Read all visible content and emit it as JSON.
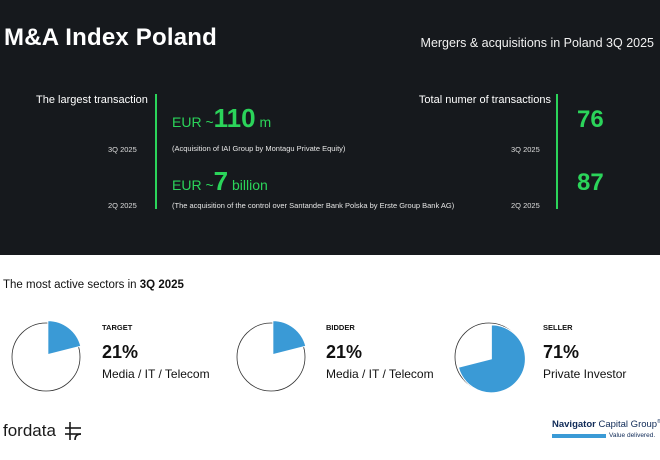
{
  "header": {
    "title": "M&A Index Poland",
    "subtitle": "Mergers & acquisitions in Poland 3Q 2025"
  },
  "largest": {
    "label": "The largest transaction",
    "q1": {
      "period": "3Q 2025",
      "prefix": "EUR ~",
      "value": "110",
      "unit": " m",
      "description": "(Acquisition of IAI Group by Montagu Private Equity)"
    },
    "q2": {
      "period": "2Q 2025",
      "prefix": "EUR ~",
      "value": "7",
      "unit": " billion",
      "description": "(The acquisition of the control over Santander Bank Polska by Erste Group Bank AG)"
    }
  },
  "total": {
    "label": "Total numer of transactions",
    "q1": {
      "period": "3Q 2025",
      "value": "76"
    },
    "q2": {
      "period": "2Q 2025",
      "value": "87"
    }
  },
  "sectors": {
    "title_prefix": "The most active sectors in ",
    "title_period": "3Q 2025",
    "items": [
      {
        "role": "TARGET",
        "percent": "21%",
        "fraction": 0.21,
        "name": "Media / IT / Telecom"
      },
      {
        "role": "BIDDER",
        "percent": "21%",
        "fraction": 0.21,
        "name": "Media / IT / Telecom"
      },
      {
        "role": "SELLER",
        "percent": "71%",
        "fraction": 0.71,
        "name": "Private Investor"
      }
    ]
  },
  "logos": {
    "fordata": "fordata",
    "navigator_light": "Navigator",
    "navigator_rest": " Capital Group",
    "navigator_mark": "®",
    "navigator_tagline": "Value delivered."
  },
  "colors": {
    "background_dark": "#16191d",
    "accent_green": "#2bd45a",
    "pie_blue": "#3a9ad6"
  }
}
